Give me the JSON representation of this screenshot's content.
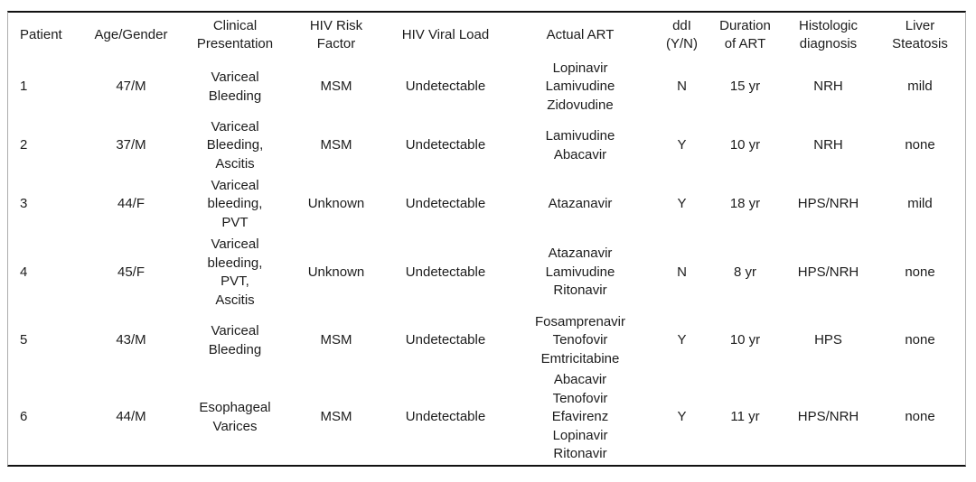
{
  "table": {
    "columns": [
      {
        "id": "patient",
        "label": [
          "Patient"
        ]
      },
      {
        "id": "age_gender",
        "label": [
          "Age/Gender"
        ]
      },
      {
        "id": "clinical",
        "label": [
          "Clinical",
          "Presentation"
        ]
      },
      {
        "id": "risk",
        "label": [
          "HIV Risk",
          "Factor"
        ]
      },
      {
        "id": "viral_load",
        "label": [
          "HIV Viral Load"
        ]
      },
      {
        "id": "art",
        "label": [
          "Actual ART"
        ]
      },
      {
        "id": "ddi",
        "label": [
          "ddI",
          "(Y/N)"
        ]
      },
      {
        "id": "duration",
        "label": [
          "Duration",
          "of ART"
        ]
      },
      {
        "id": "histology",
        "label": [
          "Histologic",
          "diagnosis"
        ]
      },
      {
        "id": "steatosis",
        "label": [
          "Liver",
          "Steatosis"
        ]
      }
    ],
    "rows": [
      {
        "patient": "1",
        "age_gender": "47/M",
        "clinical": [
          "Variceal",
          "Bleeding"
        ],
        "risk": "MSM",
        "viral_load": "Undetectable",
        "art": [
          "Lopinavir",
          "Lamivudine",
          "Zidovudine"
        ],
        "ddi": "N",
        "duration": "15 yr",
        "histology": "NRH",
        "steatosis": "mild"
      },
      {
        "patient": "2",
        "age_gender": "37/M",
        "clinical": [
          "Variceal",
          "Bleeding,",
          "Ascitis"
        ],
        "risk": "MSM",
        "viral_load": "Undetectable",
        "art": [
          "Lamivudine",
          "Abacavir"
        ],
        "ddi": "Y",
        "duration": "10 yr",
        "histology": "NRH",
        "steatosis": "none"
      },
      {
        "patient": "3",
        "age_gender": "44/F",
        "clinical": [
          "Variceal",
          "bleeding,",
          "PVT"
        ],
        "risk": "Unknown",
        "viral_load": "Undetectable",
        "art": [
          "Atazanavir"
        ],
        "ddi": "Y",
        "duration": "18 yr",
        "histology": "HPS/NRH",
        "steatosis": "mild"
      },
      {
        "patient": "4",
        "age_gender": "45/F",
        "clinical": [
          "Variceal",
          "bleeding,",
          "PVT,",
          "Ascitis"
        ],
        "risk": "Unknown",
        "viral_load": "Undetectable",
        "art": [
          "Atazanavir",
          "Lamivudine",
          "Ritonavir"
        ],
        "ddi": "N",
        "duration": "8 yr",
        "histology": "HPS/NRH",
        "steatosis": "none"
      },
      {
        "patient": "5",
        "age_gender": "43/M",
        "clinical": [
          "Variceal",
          "Bleeding"
        ],
        "risk": "MSM",
        "viral_load": "Undetectable",
        "art": [
          "Fosamprenavir",
          "Tenofovir",
          "Emtricitabine"
        ],
        "ddi": "Y",
        "duration": "10 yr",
        "histology": "HPS",
        "steatosis": "none"
      },
      {
        "patient": "6",
        "age_gender": "44/M",
        "clinical": [
          "Esophageal",
          "Varices"
        ],
        "risk": "MSM",
        "viral_load": "Undetectable",
        "art": [
          "Abacavir",
          "Tenofovir",
          "Efavirenz",
          "Lopinavir",
          "Ritonavir"
        ],
        "ddi": "Y",
        "duration": "11 yr",
        "histology": "HPS/NRH",
        "steatosis": "none"
      }
    ]
  }
}
